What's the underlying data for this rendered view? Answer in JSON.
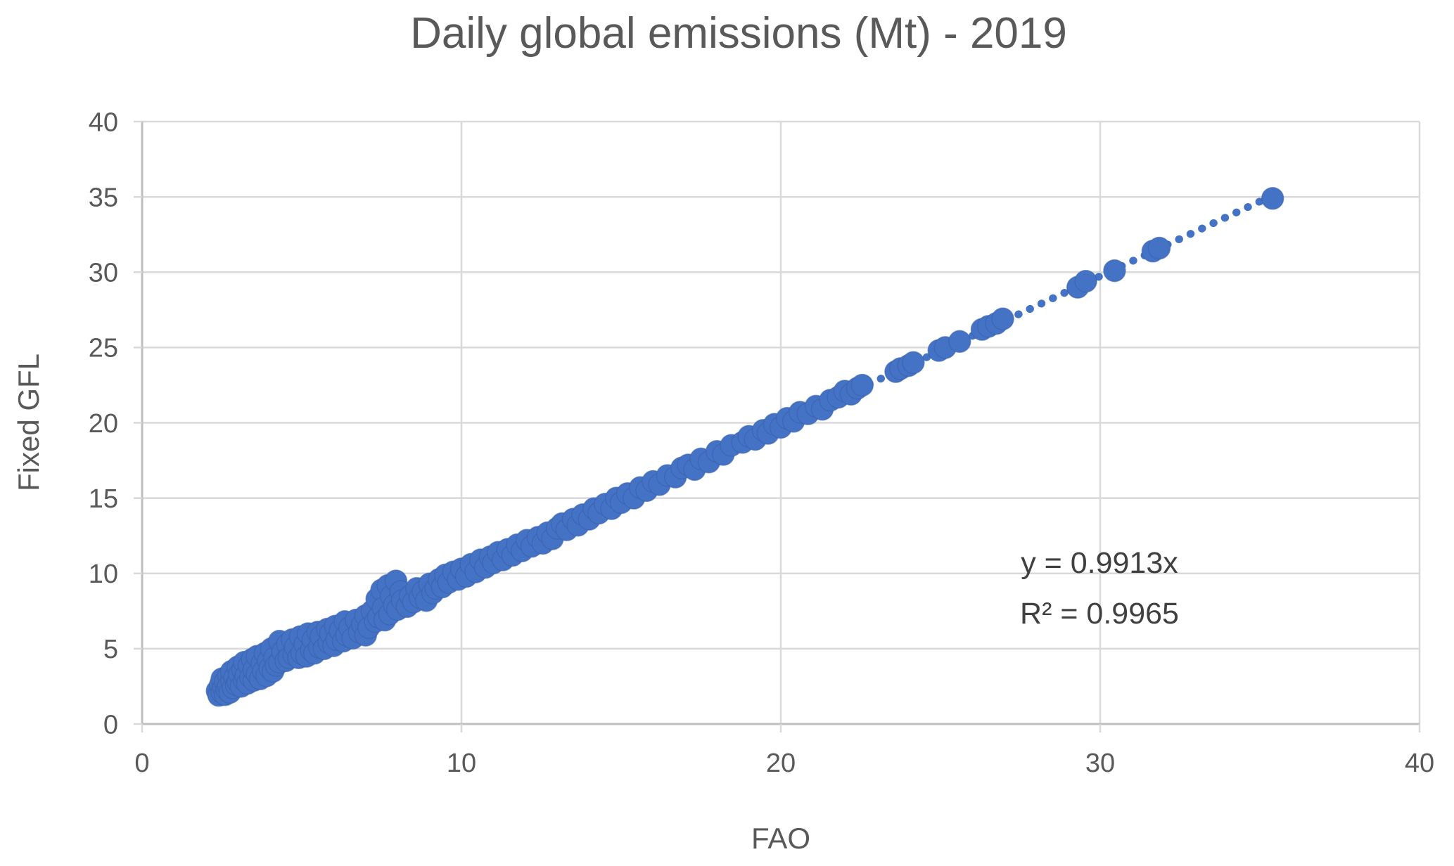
{
  "chart_data": {
    "type": "scatter",
    "title": "Daily global emissions (Mt) - 2019",
    "xlabel": "FAO",
    "ylabel": "Fixed GFL",
    "xlim": [
      0,
      40
    ],
    "ylim": [
      0,
      40
    ],
    "xticks": [
      0,
      10,
      20,
      30,
      40
    ],
    "yticks": [
      0,
      5,
      10,
      15,
      20,
      25,
      30,
      35,
      40
    ],
    "grid": true,
    "legend": "none",
    "colors": {
      "marker": "#4472C4",
      "marker_edge": "#3B63AE",
      "gridline": "#D9D9D9",
      "axis_line": "#BFBFBF",
      "title_text": "#595959",
      "tick_text": "#595959",
      "annotation_text": "#404040"
    },
    "trendline": {
      "type": "linear",
      "slope": 0.9913,
      "intercept": 0,
      "style": "dotted",
      "color": "#4472C4",
      "x_range": [
        2.3,
        35.6
      ],
      "equation_label": "y = 0.9913x",
      "r2_label": "R² = 0.9965"
    },
    "series": [
      {
        "name": "Daily global emissions 2019",
        "marker_color": "#4472C4",
        "points": [
          [
            2.35,
            2.2
          ],
          [
            2.4,
            1.9
          ],
          [
            2.45,
            2.6
          ],
          [
            2.5,
            2.1
          ],
          [
            2.5,
            3.0
          ],
          [
            2.55,
            2.4
          ],
          [
            2.6,
            1.95
          ],
          [
            2.6,
            2.8
          ],
          [
            2.65,
            2.3
          ],
          [
            2.7,
            3.2
          ],
          [
            2.7,
            2.5
          ],
          [
            2.75,
            2.1
          ],
          [
            2.8,
            2.9
          ],
          [
            2.8,
            3.5
          ],
          [
            2.85,
            2.4
          ],
          [
            2.9,
            3.1
          ],
          [
            2.95,
            2.6
          ],
          [
            3.0,
            3.8
          ],
          [
            3.0,
            2.8
          ],
          [
            3.05,
            3.3
          ],
          [
            3.1,
            2.5
          ],
          [
            3.15,
            3.6
          ],
          [
            3.2,
            2.9
          ],
          [
            3.2,
            4.1
          ],
          [
            3.25,
            3.2
          ],
          [
            3.3,
            2.7
          ],
          [
            3.35,
            3.9
          ],
          [
            3.4,
            3.1
          ],
          [
            3.45,
            4.3
          ],
          [
            3.5,
            2.9
          ],
          [
            3.5,
            3.6
          ],
          [
            3.6,
            3.3
          ],
          [
            3.6,
            4.5
          ],
          [
            3.7,
            3.0
          ],
          [
            3.75,
            4.0
          ],
          [
            3.8,
            3.5
          ],
          [
            3.85,
            4.7
          ],
          [
            3.9,
            3.2
          ],
          [
            3.95,
            4.2
          ],
          [
            4.0,
            3.7
          ],
          [
            4.05,
            5.0
          ],
          [
            4.1,
            3.5
          ],
          [
            4.15,
            4.4
          ],
          [
            4.2,
            3.9
          ],
          [
            4.3,
            5.5
          ],
          [
            4.3,
            4.1
          ],
          [
            4.4,
            4.8
          ],
          [
            4.5,
            4.2
          ],
          [
            4.55,
            5.3
          ],
          [
            4.6,
            4.4
          ],
          [
            4.7,
            5.6
          ],
          [
            4.75,
            4.6
          ],
          [
            4.8,
            5.1
          ],
          [
            4.9,
            4.4
          ],
          [
            4.95,
            5.8
          ],
          [
            5.0,
            4.7
          ],
          [
            5.1,
            5.3
          ],
          [
            5.15,
            4.5
          ],
          [
            5.2,
            6.0
          ],
          [
            5.3,
            4.9
          ],
          [
            5.35,
            5.6
          ],
          [
            5.4,
            4.7
          ],
          [
            5.5,
            6.1
          ],
          [
            5.55,
            5.1
          ],
          [
            5.6,
            5.8
          ],
          [
            5.7,
            5.0
          ],
          [
            5.8,
            6.3
          ],
          [
            5.85,
            5.4
          ],
          [
            5.9,
            6.0
          ],
          [
            6.0,
            5.2
          ],
          [
            6.05,
            6.5
          ],
          [
            6.1,
            5.6
          ],
          [
            6.2,
            6.2
          ],
          [
            6.3,
            5.5
          ],
          [
            6.35,
            6.8
          ],
          [
            6.4,
            5.9
          ],
          [
            6.5,
            6.4
          ],
          [
            6.6,
            5.7
          ],
          [
            6.7,
            6.9
          ],
          [
            6.8,
            6.1
          ],
          [
            6.9,
            6.6
          ],
          [
            7.0,
            5.9
          ],
          [
            7.0,
            7.2
          ],
          [
            7.1,
            6.4
          ],
          [
            7.2,
            7.5
          ],
          [
            7.3,
            6.8
          ],
          [
            7.35,
            8.3
          ],
          [
            7.4,
            7.1
          ],
          [
            7.5,
            8.9
          ],
          [
            7.55,
            7.7
          ],
          [
            7.6,
            6.9
          ],
          [
            7.7,
            9.2
          ],
          [
            7.75,
            7.3
          ],
          [
            7.8,
            8.5
          ],
          [
            7.9,
            7.9
          ],
          [
            7.95,
            9.5
          ],
          [
            8.0,
            7.6
          ],
          [
            8.1,
            8.8
          ],
          [
            8.15,
            8.2
          ],
          [
            8.3,
            7.8
          ],
          [
            8.4,
            8.5
          ],
          [
            8.5,
            8.1
          ],
          [
            8.6,
            9.0
          ],
          [
            8.7,
            8.4
          ],
          [
            8.8,
            8.8
          ],
          [
            8.9,
            8.2
          ],
          [
            9.0,
            9.3
          ],
          [
            9.1,
            8.7
          ],
          [
            9.2,
            9.0
          ],
          [
            9.3,
            9.6
          ],
          [
            9.4,
            9.1
          ],
          [
            9.5,
            9.9
          ],
          [
            9.6,
            9.4
          ],
          [
            9.75,
            10.1
          ],
          [
            9.9,
            9.6
          ],
          [
            10.0,
            10.3
          ],
          [
            10.15,
            9.8
          ],
          [
            10.3,
            10.6
          ],
          [
            10.45,
            10.1
          ],
          [
            10.6,
            10.9
          ],
          [
            10.75,
            10.4
          ],
          [
            10.9,
            11.1
          ],
          [
            11.0,
            10.7
          ],
          [
            11.15,
            11.4
          ],
          [
            11.3,
            10.9
          ],
          [
            11.45,
            11.6
          ],
          [
            11.6,
            11.2
          ],
          [
            11.75,
            11.9
          ],
          [
            11.9,
            11.5
          ],
          [
            12.05,
            12.2
          ],
          [
            12.2,
            11.8
          ],
          [
            12.4,
            12.4
          ],
          [
            12.55,
            12.0
          ],
          [
            12.7,
            12.7
          ],
          [
            12.85,
            12.3
          ],
          [
            13.0,
            13.0
          ],
          [
            13.15,
            13.3
          ],
          [
            13.3,
            12.9
          ],
          [
            13.5,
            13.6
          ],
          [
            13.65,
            13.2
          ],
          [
            13.8,
            13.9
          ],
          [
            14.0,
            13.6
          ],
          [
            14.15,
            14.3
          ],
          [
            14.3,
            14.0
          ],
          [
            14.5,
            14.6
          ],
          [
            14.7,
            14.3
          ],
          [
            14.85,
            15.0
          ],
          [
            15.0,
            14.7
          ],
          [
            15.2,
            15.3
          ],
          [
            15.4,
            15.0
          ],
          [
            15.6,
            15.7
          ],
          [
            15.8,
            15.5
          ],
          [
            16.0,
            16.1
          ],
          [
            16.2,
            15.9
          ],
          [
            16.45,
            16.5
          ],
          [
            16.7,
            16.4
          ],
          [
            16.9,
            17.0
          ],
          [
            17.1,
            17.2
          ],
          [
            17.3,
            16.9
          ],
          [
            17.5,
            17.6
          ],
          [
            17.75,
            17.4
          ],
          [
            18.0,
            18.1
          ],
          [
            18.2,
            17.9
          ],
          [
            18.45,
            18.5
          ],
          [
            18.8,
            18.7
          ],
          [
            19.0,
            19.1
          ],
          [
            19.2,
            18.9
          ],
          [
            19.45,
            19.5
          ],
          [
            19.6,
            19.3
          ],
          [
            19.8,
            19.9
          ],
          [
            20.0,
            19.7
          ],
          [
            20.2,
            20.3
          ],
          [
            20.4,
            20.1
          ],
          [
            20.6,
            20.7
          ],
          [
            20.85,
            20.6
          ],
          [
            21.1,
            21.1
          ],
          [
            21.3,
            20.9
          ],
          [
            21.55,
            21.5
          ],
          [
            21.8,
            21.7
          ],
          [
            22.0,
            22.1
          ],
          [
            22.2,
            21.9
          ],
          [
            22.4,
            22.3
          ],
          [
            22.55,
            22.5
          ],
          [
            23.6,
            23.4
          ],
          [
            23.75,
            23.6
          ],
          [
            24.0,
            23.8
          ],
          [
            24.15,
            24.0
          ],
          [
            24.95,
            24.8
          ],
          [
            25.15,
            25.0
          ],
          [
            25.6,
            25.4
          ],
          [
            26.3,
            26.2
          ],
          [
            26.5,
            26.4
          ],
          [
            26.75,
            26.6
          ],
          [
            26.95,
            26.9
          ],
          [
            29.3,
            29.0
          ],
          [
            29.55,
            29.4
          ],
          [
            30.45,
            30.1
          ],
          [
            31.65,
            31.4
          ],
          [
            31.85,
            31.6
          ],
          [
            35.4,
            34.9
          ]
        ]
      }
    ]
  }
}
